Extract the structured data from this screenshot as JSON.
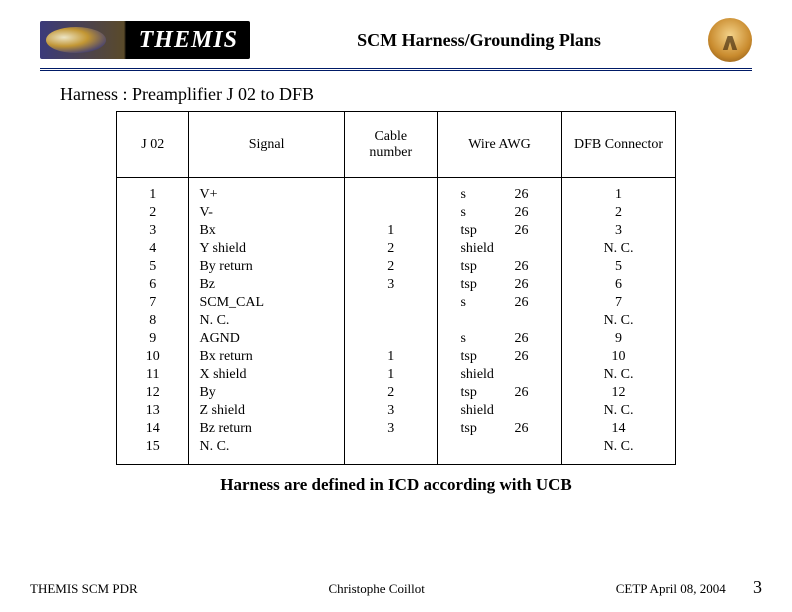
{
  "header": {
    "logo_text": "THEMIS",
    "title": "SCM Harness/Grounding Plans"
  },
  "subtitle": "Harness : Preamplifier J 02 to DFB",
  "table": {
    "columns": [
      "J 02",
      "Signal",
      "Cable number",
      "Wire AWG",
      "DFB Connector"
    ],
    "j02": [
      "1",
      "2",
      "3",
      "4",
      "5",
      "6",
      "7",
      "8",
      "9",
      "10",
      "11",
      "12",
      "13",
      "14",
      "15"
    ],
    "signal": [
      "V+",
      "V-",
      "Bx",
      "Y shield",
      "By return",
      "Bz",
      "SCM_CAL",
      "N. C.",
      "AGND",
      "Bx return",
      "X shield",
      "By",
      "Z shield",
      "Bz return",
      "N. C."
    ],
    "cable": [
      "",
      "",
      "1",
      "2",
      "2",
      "3",
      "",
      "",
      "",
      "1",
      "1",
      "2",
      "3",
      "3",
      ""
    ],
    "wire": [
      {
        "a": "s",
        "b": "26"
      },
      {
        "a": "s",
        "b": "26"
      },
      {
        "a": "tsp",
        "b": "26"
      },
      {
        "a": "shield",
        "b": ""
      },
      {
        "a": "tsp",
        "b": "26"
      },
      {
        "a": "tsp",
        "b": "26"
      },
      {
        "a": "s",
        "b": "26"
      },
      {
        "a": "",
        "b": ""
      },
      {
        "a": "s",
        "b": "26"
      },
      {
        "a": "tsp",
        "b": "26"
      },
      {
        "a": "shield",
        "b": ""
      },
      {
        "a": "tsp",
        "b": "26"
      },
      {
        "a": "shield",
        "b": ""
      },
      {
        "a": "tsp",
        "b": "26"
      },
      {
        "a": "",
        "b": ""
      }
    ],
    "dfb": [
      "1",
      "2",
      "3",
      "N. C.",
      "5",
      "6",
      "7",
      "N. C.",
      "9",
      "10",
      "N. C.",
      "12",
      "N. C.",
      "14",
      "N. C."
    ]
  },
  "note": "Harness are defined in ICD according with UCB",
  "footer": {
    "left": "THEMIS SCM PDR",
    "center": "Christophe Coillot",
    "right": "CETP April 08, 2004",
    "page": "3"
  },
  "style": {
    "page_bg": "#ffffff",
    "rule_color": "#001a66",
    "font_family": "Times New Roman",
    "title_fontsize": 18,
    "body_fontsize": 14
  }
}
